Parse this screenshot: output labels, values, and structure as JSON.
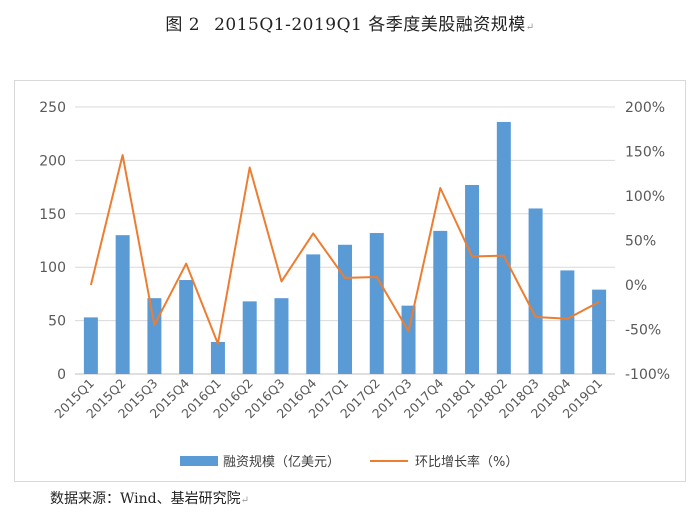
{
  "figure": {
    "number": "图 2",
    "title": "2015Q1-2019Q1 各季度美股融资规模",
    "source": "数据来源：Wind、基岩研究院"
  },
  "chart_data": {
    "type": "bar",
    "title": "",
    "categories": [
      "2015Q1",
      "2015Q2",
      "2015Q3",
      "2015Q4",
      "2016Q1",
      "2016Q2",
      "2016Q3",
      "2016Q4",
      "2017Q1",
      "2017Q2",
      "2017Q3",
      "2017Q4",
      "2018Q1",
      "2018Q2",
      "2018Q3",
      "2018Q4",
      "2019Q1"
    ],
    "series": [
      {
        "name": "融资规模（亿美元）",
        "type": "bar",
        "axis": "left",
        "color": "#5b9bd5",
        "values": [
          53,
          130,
          71,
          88,
          30,
          68,
          71,
          112,
          121,
          132,
          64,
          134,
          177,
          236,
          155,
          97,
          79
        ]
      },
      {
        "name": "环比增长率（%）",
        "type": "line",
        "axis": "right",
        "color": "#ed7d31",
        "values": [
          0,
          146,
          -45,
          24,
          -66,
          132,
          4,
          58,
          8,
          9,
          -52,
          109,
          32,
          33,
          -36,
          -38,
          -19
        ]
      }
    ],
    "y_left": {
      "min": 0,
      "max": 250,
      "step": 50,
      "ticks": [
        "0",
        "50",
        "100",
        "150",
        "200",
        "250"
      ]
    },
    "y_right": {
      "min": -100,
      "max": 200,
      "step": 50,
      "ticks": [
        "-100%",
        "-50%",
        "0%",
        "50%",
        "100%",
        "150%",
        "200%"
      ]
    },
    "grid": true,
    "legend": "bottom"
  }
}
